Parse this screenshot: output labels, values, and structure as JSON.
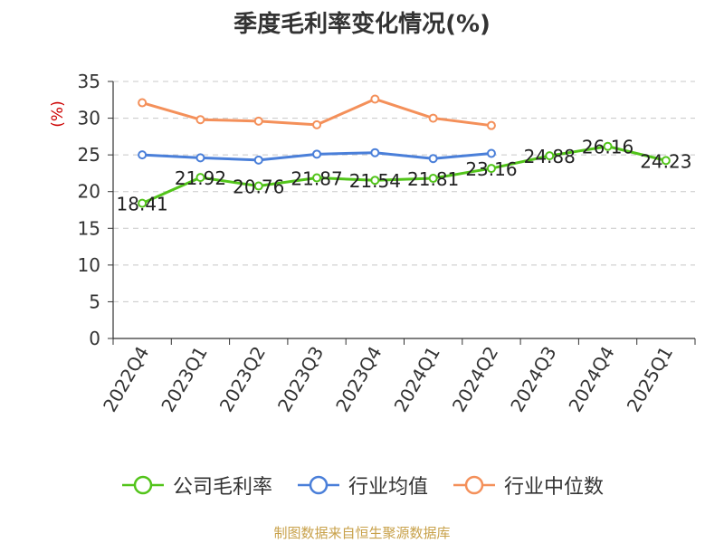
{
  "chart_data": {
    "type": "line",
    "title": "季度毛利率变化情况(%)",
    "ylabel": "(%)",
    "ylim": [
      0,
      35
    ],
    "yticks": [
      0,
      5,
      10,
      15,
      20,
      25,
      30,
      35
    ],
    "grid": true,
    "legend_position": "bottom",
    "categories": [
      "2022Q4",
      "2023Q1",
      "2023Q2",
      "2023Q3",
      "2023Q4",
      "2024Q1",
      "2024Q2",
      "2024Q3",
      "2024Q4",
      "2025Q1"
    ],
    "series": [
      {
        "name": "公司毛利率",
        "color": "#52c41a",
        "values": [
          18.41,
          21.92,
          20.76,
          21.87,
          21.54,
          21.81,
          23.16,
          24.88,
          26.16,
          24.23
        ],
        "labels": [
          "18.41",
          "21.92",
          "20.76",
          "21.87",
          "21.54",
          "21.81",
          "23.16",
          "24.88",
          "26.16",
          "24.23"
        ]
      },
      {
        "name": "行业均值",
        "color": "#4a7fd9",
        "values": [
          25.0,
          24.6,
          24.3,
          25.1,
          25.3,
          24.5,
          25.2,
          null,
          null,
          null
        ]
      },
      {
        "name": "行业中位数",
        "color": "#f4905a",
        "values": [
          32.1,
          29.8,
          29.6,
          29.1,
          32.6,
          30.0,
          29.0,
          null,
          null,
          null
        ]
      }
    ]
  },
  "source_note": "制图数据来自恒生聚源数据库"
}
